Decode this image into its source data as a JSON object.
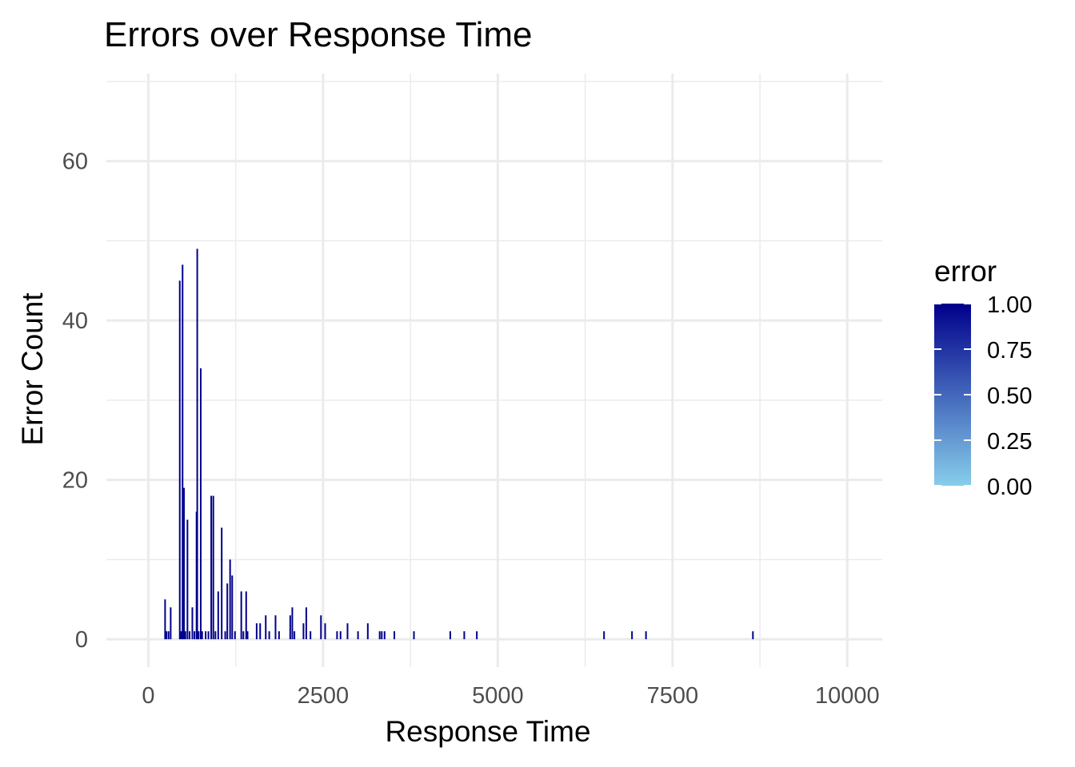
{
  "chart_data": {
    "type": "bar",
    "title": "Errors over Response Time",
    "xlabel": "Response Time",
    "ylabel": "Error Count",
    "xlim": [
      -600,
      10500
    ],
    "ylim": [
      -3.5,
      71
    ],
    "x_ticks": [
      0,
      2500,
      5000,
      7500,
      10000
    ],
    "x_tick_labels": [
      "0",
      "2500",
      "5000",
      "7500",
      "10000"
    ],
    "y_ticks": [
      0,
      20,
      40,
      60
    ],
    "y_tick_labels": [
      "0",
      "20",
      "40",
      "60"
    ],
    "grid": true,
    "legend": {
      "title": "error",
      "position": "right",
      "type": "colorbar",
      "low_color": "#87ceeb",
      "high_color": "#00008b",
      "breaks": [
        1.0,
        0.75,
        0.5,
        0.25,
        0.0
      ],
      "labels": [
        "1.00",
        "0.75",
        "0.50",
        "0.25",
        "0.00"
      ]
    },
    "bar_color": "#00008b",
    "x": [
      240,
      260,
      290,
      320,
      450,
      470,
      490,
      510,
      530,
      560,
      590,
      630,
      660,
      690,
      700,
      720,
      750,
      770,
      820,
      860,
      900,
      930,
      960,
      1000,
      1050,
      1100,
      1130,
      1170,
      1200,
      1240,
      1330,
      1360,
      1400,
      1420,
      1550,
      1600,
      1680,
      1730,
      1820,
      1870,
      2030,
      2060,
      2090,
      2220,
      2260,
      2320,
      2470,
      2530,
      2700,
      2750,
      2850,
      3000,
      3140,
      3310,
      3340,
      3380,
      3520,
      3800,
      4320,
      4520,
      4700,
      6520,
      6920,
      7120,
      8650
    ],
    "values": [
      5,
      1,
      1,
      4,
      45,
      1,
      47,
      19,
      1,
      15,
      1,
      4,
      1,
      16,
      49,
      1,
      34,
      1,
      1,
      1,
      18,
      18,
      1,
      6,
      14,
      1,
      7,
      10,
      8,
      1,
      6,
      1,
      6,
      1,
      2,
      2,
      3,
      1,
      3,
      1,
      3,
      4,
      1,
      2,
      4,
      1,
      3,
      2,
      1,
      1,
      2,
      1,
      2,
      1,
      1,
      1,
      1,
      1,
      1,
      1,
      1,
      1,
      1,
      1,
      1
    ]
  }
}
